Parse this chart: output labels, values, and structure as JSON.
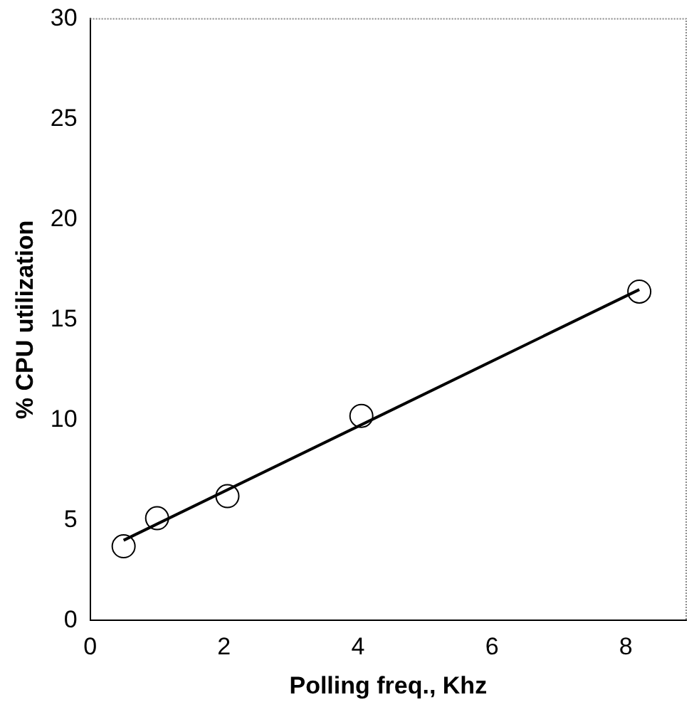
{
  "chart_data": {
    "type": "scatter",
    "xlabel": "Polling freq., Khz",
    "ylabel": "% CPU utilization",
    "xlim": [
      0,
      8.9
    ],
    "xticks": [
      0,
      2,
      4,
      6,
      8
    ],
    "ylim": [
      0,
      30
    ],
    "yticks": [
      0,
      5,
      10,
      15,
      20,
      25,
      30
    ],
    "grid": false,
    "legend": false,
    "series": [
      {
        "color": "#000000",
        "marker": "circle",
        "x": [
          0.5,
          1,
          2.05,
          4.05,
          8.2
        ],
        "values": [
          3.7,
          5.1,
          6.2,
          10.2,
          16.4
        ]
      },
      {
        "type": "line",
        "color": "#000000",
        "marker": "none",
        "line_style": "solid",
        "x": [
          0.5,
          8.2
        ],
        "values": [
          4.0,
          16.5
        ]
      }
    ]
  }
}
